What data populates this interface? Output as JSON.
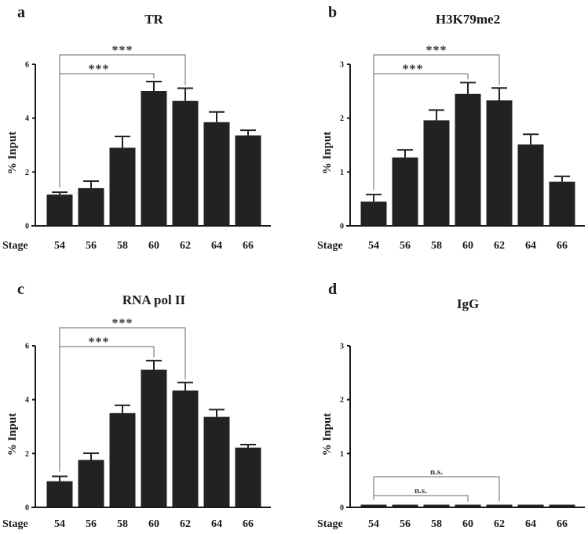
{
  "chart_data": [
    {
      "type": "bar",
      "panel": "a",
      "title": "TR",
      "xlabel": "Stage",
      "ylabel": "% Input",
      "categories": [
        "54",
        "56",
        "58",
        "60",
        "62",
        "64",
        "66"
      ],
      "values": [
        1.16,
        1.4,
        2.9,
        5.01,
        4.64,
        3.85,
        3.36
      ],
      "error_upper": [
        1.25,
        1.66,
        3.32,
        5.36,
        5.11,
        4.23,
        3.55
      ],
      "ylim": [
        0,
        6
      ],
      "yticks": [
        "0",
        "2",
        "4",
        "6"
      ],
      "grid": false,
      "bar_color": "#222222",
      "comparisons": [
        {
          "from": "54",
          "to": "60",
          "label": "***"
        },
        {
          "from": "54",
          "to": "62",
          "label": "***"
        }
      ]
    },
    {
      "type": "bar",
      "panel": "b",
      "title": "H3K79me2",
      "xlabel": "Stage",
      "ylabel": "% Input",
      "categories": [
        "54",
        "56",
        "58",
        "60",
        "62",
        "64",
        "66"
      ],
      "values": [
        0.45,
        1.27,
        1.96,
        2.45,
        2.33,
        1.51,
        0.82
      ],
      "error_upper": [
        0.58,
        1.41,
        2.15,
        2.66,
        2.56,
        1.7,
        0.92
      ],
      "ylim": [
        0,
        3
      ],
      "yticks": [
        "0",
        "1",
        "2",
        "3"
      ],
      "grid": false,
      "bar_color": "#222222",
      "comparisons": [
        {
          "from": "54",
          "to": "60",
          "label": "***"
        },
        {
          "from": "54",
          "to": "62",
          "label": "***"
        }
      ]
    },
    {
      "type": "bar",
      "panel": "c",
      "title": "RNA pol II",
      "xlabel": "Stage",
      "ylabel": "% Input",
      "categories": [
        "54",
        "56",
        "58",
        "60",
        "62",
        "64",
        "66"
      ],
      "values": [
        0.97,
        1.76,
        3.5,
        5.11,
        4.34,
        3.36,
        2.22
      ],
      "error_upper": [
        1.15,
        2.01,
        3.79,
        5.45,
        4.64,
        3.63,
        2.33
      ],
      "ylim": [
        0,
        6
      ],
      "yticks": [
        "0",
        "2",
        "4",
        "6"
      ],
      "grid": false,
      "bar_color": "#222222",
      "comparisons": [
        {
          "from": "54",
          "to": "60",
          "label": "***"
        },
        {
          "from": "54",
          "to": "62",
          "label": "***"
        }
      ]
    },
    {
      "type": "bar",
      "panel": "d",
      "title": "IgG",
      "xlabel": "Stage",
      "ylabel": "% Input",
      "categories": [
        "54",
        "56",
        "58",
        "60",
        "62",
        "64",
        "66"
      ],
      "values": [
        0.05,
        0.05,
        0.05,
        0.05,
        0.05,
        0.05,
        0.05
      ],
      "error_upper": [
        null,
        null,
        null,
        null,
        null,
        null,
        null
      ],
      "ylim": [
        0,
        3
      ],
      "yticks": [
        "0",
        "1",
        "2",
        "3"
      ],
      "grid": false,
      "bar_color": "#222222",
      "comparisons": [
        {
          "from": "54",
          "to": "60",
          "label": "n.s."
        },
        {
          "from": "54",
          "to": "62",
          "label": "n.s."
        }
      ]
    }
  ]
}
